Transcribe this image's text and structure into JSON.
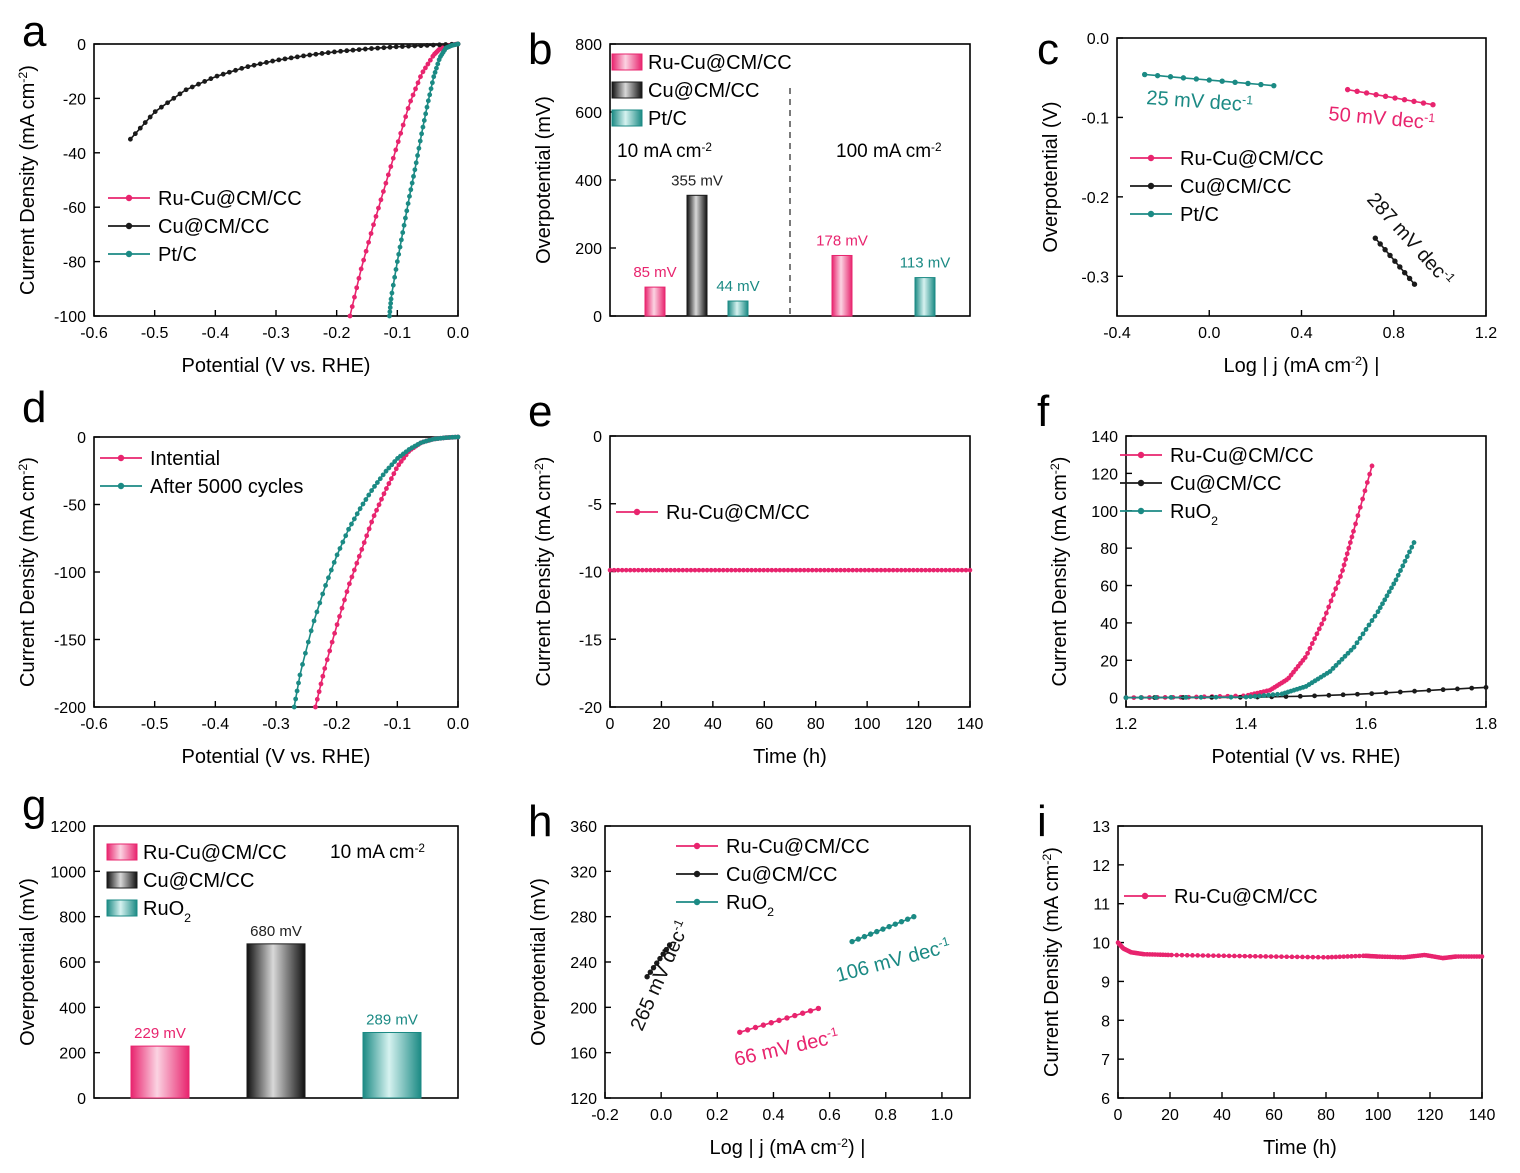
{
  "figure": {
    "colors": {
      "pink": "#e8246e",
      "black": "#1a1a1a",
      "teal": "#1b8a84",
      "axis": "#000000"
    }
  },
  "chart_data": [
    {
      "id": "a",
      "panel_label": "a",
      "type": "line",
      "xlabel": "Potential (V vs. RHE)",
      "ylabel": "Current Density (mA cm",
      "ylabel_sup": "-2",
      "ylabel_tail": ")",
      "xlim": [
        -0.6,
        0.0
      ],
      "ylim": [
        -100,
        0
      ],
      "xticks": [
        -0.6,
        -0.5,
        -0.4,
        -0.3,
        -0.2,
        -0.1,
        0.0
      ],
      "xtick_labels": [
        "-0.6",
        "-0.5",
        "-0.4",
        "-0.3",
        "-0.2",
        "-0.1",
        "0.0"
      ],
      "yticks": [
        -100,
        -80,
        -60,
        -40,
        -20,
        0
      ],
      "ytick_labels": [
        "-100",
        "-80",
        "-60",
        "-40",
        "-20",
        "0"
      ],
      "legend": [
        "Ru-Cu@CM/CC",
        "Cu@CM/CC",
        "Pt/C"
      ],
      "series": [
        {
          "name": "Ru-Cu@CM/CC",
          "color": "pink",
          "x": [
            0.0,
            -0.01,
            -0.02,
            -0.03,
            -0.04,
            -0.06,
            -0.08,
            -0.1,
            -0.12,
            -0.14,
            -0.16,
            -0.178
          ],
          "y": [
            0,
            -0.3,
            -0.8,
            -1.8,
            -4,
            -11,
            -22,
            -37,
            -52,
            -67,
            -83,
            -100
          ]
        },
        {
          "name": "Cu@CM/CC",
          "color": "black",
          "x": [
            0.0,
            -0.05,
            -0.1,
            -0.15,
            -0.2,
            -0.25,
            -0.3,
            -0.35,
            -0.4,
            -0.45,
            -0.5,
            -0.54
          ],
          "y": [
            0,
            -0.5,
            -1,
            -1.8,
            -2.8,
            -4.2,
            -6,
            -8.5,
            -12,
            -17,
            -25,
            -35
          ]
        },
        {
          "name": "Pt/C",
          "color": "teal",
          "x": [
            0.0,
            -0.01,
            -0.02,
            -0.03,
            -0.04,
            -0.05,
            -0.06,
            -0.07,
            -0.08,
            -0.09,
            -0.1,
            -0.11,
            -0.113
          ],
          "y": [
            0,
            -0.5,
            -1.5,
            -5,
            -12,
            -22,
            -33,
            -45,
            -56,
            -68,
            -80,
            -93,
            -100
          ]
        }
      ]
    },
    {
      "id": "b",
      "panel_label": "b",
      "type": "bar",
      "ylabel": "Overpotential (mV)",
      "ylim": [
        0,
        800
      ],
      "yticks": [
        0,
        200,
        400,
        600,
        800
      ],
      "ytick_labels": [
        "0",
        "200",
        "400",
        "600",
        "800"
      ],
      "legend": [
        "Ru-Cu@CM/CC",
        "Cu@CM/CC",
        "Pt/C"
      ],
      "group_labels": [
        "10 mA cm",
        "100 mA cm"
      ],
      "group_sup": "-2",
      "bars": [
        {
          "group": 0,
          "series": "Ru-Cu@CM/CC",
          "color": "pink",
          "value": 85,
          "label": "85 mV"
        },
        {
          "group": 0,
          "series": "Cu@CM/CC",
          "color": "black",
          "value": 355,
          "label": "355 mV"
        },
        {
          "group": 0,
          "series": "Pt/C",
          "color": "teal",
          "value": 44,
          "label": "44 mV"
        },
        {
          "group": 1,
          "series": "Ru-Cu@CM/CC",
          "color": "pink",
          "value": 178,
          "label": "178 mV"
        },
        {
          "group": 1,
          "series": "Pt/C",
          "color": "teal",
          "value": 113,
          "label": "113 mV"
        }
      ]
    },
    {
      "id": "c",
      "panel_label": "c",
      "type": "line",
      "xlabel": "Log | j (mA cm",
      "xlabel_sup": "-2",
      "xlabel_tail": ") |",
      "ylabel": "Overpotential (V)",
      "xlim": [
        -0.4,
        1.2
      ],
      "ylim": [
        -0.35,
        0.0
      ],
      "xticks": [
        -0.4,
        0.0,
        0.4,
        0.8,
        1.2
      ],
      "xtick_labels": [
        "-0.4",
        "0.0",
        "0.4",
        "0.8",
        "1.2"
      ],
      "yticks": [
        -0.3,
        -0.2,
        -0.1,
        0.0
      ],
      "ytick_labels": [
        "-0.3",
        "-0.2",
        "-0.1",
        "0.0"
      ],
      "legend": [
        "Ru-Cu@CM/CC",
        "Cu@CM/CC",
        "Pt/C"
      ],
      "series": [
        {
          "name": "Ru-Cu@CM/CC",
          "color": "pink",
          "x": [
            0.6,
            0.97
          ],
          "y": [
            -0.065,
            -0.084
          ],
          "n": 10
        },
        {
          "name": "Cu@CM/CC",
          "color": "black",
          "x": [
            0.72,
            0.89
          ],
          "y": [
            -0.252,
            -0.31
          ],
          "n": 9
        },
        {
          "name": "Pt/C",
          "color": "teal",
          "x": [
            -0.28,
            0.28
          ],
          "y": [
            -0.046,
            -0.06
          ],
          "n": 11
        }
      ],
      "annotations": [
        {
          "text": "25 mV dec",
          "sup": "-1",
          "color": "teal"
        },
        {
          "text": "50 mV dec",
          "sup": "-1",
          "color": "pink"
        },
        {
          "text": "287 mV dec",
          "sup": "-1",
          "color": "black"
        }
      ]
    },
    {
      "id": "d",
      "panel_label": "d",
      "type": "line",
      "xlabel": "Potential (V vs. RHE)",
      "ylabel": "Current Density (mA cm",
      "ylabel_sup": "-2",
      "ylabel_tail": ")",
      "xlim": [
        -0.6,
        0.0
      ],
      "ylim": [
        -200,
        0
      ],
      "xticks": [
        -0.6,
        -0.5,
        -0.4,
        -0.3,
        -0.2,
        -0.1,
        0.0
      ],
      "xtick_labels": [
        "-0.6",
        "-0.5",
        "-0.4",
        "-0.3",
        "-0.2",
        "-0.1",
        "0.0"
      ],
      "yticks": [
        -200,
        -150,
        -100,
        -50,
        0
      ],
      "ytick_labels": [
        "-200",
        "-150",
        "-100",
        "-50",
        "0"
      ],
      "legend": [
        "Intential",
        "After 5000 cycles"
      ],
      "series": [
        {
          "name": "Intential",
          "color": "pink",
          "x": [
            0.0,
            -0.02,
            -0.04,
            -0.06,
            -0.08,
            -0.1,
            -0.12,
            -0.14,
            -0.16,
            -0.18,
            -0.2,
            -0.22,
            -0.235
          ],
          "y": [
            0,
            -0.5,
            -1.5,
            -4,
            -10,
            -22,
            -40,
            -60,
            -85,
            -110,
            -140,
            -172,
            -200
          ]
        },
        {
          "name": "After 5000 cycles",
          "color": "teal",
          "x": [
            0.0,
            -0.02,
            -0.04,
            -0.06,
            -0.08,
            -0.1,
            -0.12,
            -0.14,
            -0.16,
            -0.18,
            -0.2,
            -0.22,
            -0.24,
            -0.26,
            -0.27
          ],
          "y": [
            0,
            -0.5,
            -1.5,
            -4,
            -9,
            -16,
            -26,
            -38,
            -52,
            -68,
            -88,
            -112,
            -140,
            -175,
            -200
          ]
        }
      ]
    },
    {
      "id": "e",
      "panel_label": "e",
      "type": "line",
      "xlabel": "Time (h)",
      "ylabel": "Current Density (mA cm",
      "ylabel_sup": "-2",
      "ylabel_tail": ")",
      "xlim": [
        0,
        140
      ],
      "ylim": [
        -20,
        0
      ],
      "xticks": [
        0,
        20,
        40,
        60,
        80,
        100,
        120,
        140
      ],
      "xtick_labels": [
        "0",
        "20",
        "40",
        "60",
        "80",
        "100",
        "120",
        "140"
      ],
      "yticks": [
        -20,
        -15,
        -10,
        -5,
        0
      ],
      "ytick_labels": [
        "-20",
        "-15",
        "-10",
        "-5",
        "0"
      ],
      "legend": [
        "Ru-Cu@CM/CC"
      ],
      "series": [
        {
          "name": "Ru-Cu@CM/CC",
          "color": "pink",
          "x": [
            0,
            140
          ],
          "y": [
            -9.9,
            -9.9
          ],
          "n": 90,
          "style": "flat"
        }
      ]
    },
    {
      "id": "f",
      "panel_label": "f",
      "type": "line",
      "xlabel": "Potential (V vs. RHE)",
      "ylabel": "Current Density (mA cm",
      "ylabel_sup": "-2",
      "ylabel_tail": ")",
      "xlim": [
        1.2,
        1.8
      ],
      "ylim": [
        -5,
        140
      ],
      "xticks": [
        1.2,
        1.4,
        1.6,
        1.8
      ],
      "xtick_labels": [
        "1.2",
        "1.4",
        "1.6",
        "1.8"
      ],
      "yticks": [
        0,
        20,
        40,
        60,
        80,
        100,
        120,
        140
      ],
      "ytick_labels": [
        "0",
        "20",
        "40",
        "60",
        "80",
        "100",
        "120",
        "140"
      ],
      "legend": [
        "Ru-Cu@CM/CC",
        "Cu@CM/CC",
        "RuO"
      ],
      "legend_sub": [
        null,
        null,
        "2"
      ],
      "series": [
        {
          "name": "Ru-Cu@CM/CC",
          "color": "pink",
          "x": [
            1.2,
            1.3,
            1.4,
            1.44,
            1.47,
            1.5,
            1.53,
            1.56,
            1.58,
            1.61
          ],
          "y": [
            0,
            0.2,
            1,
            4,
            10,
            22,
            42,
            67,
            90,
            124
          ]
        },
        {
          "name": "Cu@CM/CC",
          "color": "black",
          "x": [
            1.2,
            1.4,
            1.5,
            1.6,
            1.7,
            1.8
          ],
          "y": [
            0,
            0.2,
            0.8,
            2,
            3.8,
            5.5
          ]
        },
        {
          "name": "RuO2",
          "color": "teal",
          "x": [
            1.2,
            1.4,
            1.46,
            1.5,
            1.54,
            1.58,
            1.62,
            1.65,
            1.68
          ],
          "y": [
            0,
            0.3,
            2,
            6,
            14,
            27,
            46,
            63,
            83
          ]
        }
      ]
    },
    {
      "id": "g",
      "panel_label": "g",
      "type": "bar",
      "ylabel": "Overpotential (mV)",
      "ylim": [
        0,
        1200
      ],
      "yticks": [
        0,
        200,
        400,
        600,
        800,
        1000,
        1200
      ],
      "ytick_labels": [
        "0",
        "200",
        "400",
        "600",
        "800",
        "1000",
        "1200"
      ],
      "legend": [
        "Ru-Cu@CM/CC",
        "Cu@CM/CC",
        "RuO"
      ],
      "legend_sub": [
        null,
        null,
        "2"
      ],
      "note": "10 mA cm",
      "note_sup": "-2",
      "bars": [
        {
          "series": "Ru-Cu@CM/CC",
          "color": "pink",
          "value": 229,
          "label": "229 mV"
        },
        {
          "series": "Cu@CM/CC",
          "color": "black",
          "value": 680,
          "label": "680 mV"
        },
        {
          "series": "RuO2",
          "color": "teal",
          "value": 289,
          "label": "289 mV"
        }
      ]
    },
    {
      "id": "h",
      "panel_label": "h",
      "type": "line",
      "xlabel": "Log | j (mA cm",
      "xlabel_sup": "-2",
      "xlabel_tail": ") |",
      "ylabel": "Overpotential (mV)",
      "xlim": [
        -0.2,
        1.1
      ],
      "ylim": [
        120,
        360
      ],
      "xticks": [
        -0.2,
        0.0,
        0.2,
        0.4,
        0.6,
        0.8,
        1.0
      ],
      "xtick_labels": [
        "-0.2",
        "0.0",
        "0.2",
        "0.4",
        "0.6",
        "0.8",
        "1.0"
      ],
      "yticks": [
        120,
        160,
        200,
        240,
        280,
        320,
        360
      ],
      "ytick_labels": [
        "120",
        "160",
        "200",
        "240",
        "280",
        "320",
        "360"
      ],
      "legend": [
        "Ru-Cu@CM/CC",
        "Cu@CM/CC",
        "RuO"
      ],
      "legend_sub": [
        null,
        null,
        "2"
      ],
      "series": [
        {
          "name": "Ru-Cu@CM/CC",
          "color": "pink",
          "x": [
            0.28,
            0.56
          ],
          "y": [
            178,
            199
          ],
          "n": 11
        },
        {
          "name": "Cu@CM/CC",
          "color": "black",
          "x": [
            -0.05,
            0.03
          ],
          "y": [
            227,
            255
          ],
          "n": 8
        },
        {
          "name": "RuO2",
          "color": "teal",
          "x": [
            0.68,
            0.9
          ],
          "y": [
            258,
            280
          ],
          "n": 11
        }
      ],
      "annotations": [
        {
          "text": "265 mV dec",
          "sup": "-1",
          "color": "black"
        },
        {
          "text": "106 mV dec",
          "sup": "-1",
          "color": "teal"
        },
        {
          "text": "66 mV dec",
          "sup": "-1",
          "color": "pink"
        }
      ]
    },
    {
      "id": "i",
      "panel_label": "i",
      "type": "line",
      "xlabel": "Time (h)",
      "ylabel": "Current Density (mA cm",
      "ylabel_sup": "-2",
      "ylabel_tail": ")",
      "xlim": [
        0,
        140
      ],
      "ylim": [
        6,
        13
      ],
      "xticks": [
        0,
        20,
        40,
        60,
        80,
        100,
        120,
        140
      ],
      "xtick_labels": [
        "0",
        "20",
        "40",
        "60",
        "80",
        "100",
        "120",
        "140"
      ],
      "yticks": [
        6,
        7,
        8,
        9,
        10,
        11,
        12,
        13
      ],
      "ytick_labels": [
        "6",
        "7",
        "8",
        "9",
        "10",
        "11",
        "12",
        "13"
      ],
      "legend": [
        "Ru-Cu@CM/CC"
      ],
      "series": [
        {
          "name": "Ru-Cu@CM/CC",
          "color": "pink",
          "x": [
            0,
            2,
            5,
            10,
            20,
            40,
            60,
            80,
            95,
            100,
            110,
            118,
            125,
            130,
            140
          ],
          "y": [
            10.0,
            9.85,
            9.75,
            9.7,
            9.68,
            9.66,
            9.64,
            9.62,
            9.66,
            9.64,
            9.62,
            9.68,
            9.6,
            9.64,
            9.64
          ],
          "style": "dense"
        }
      ]
    }
  ]
}
